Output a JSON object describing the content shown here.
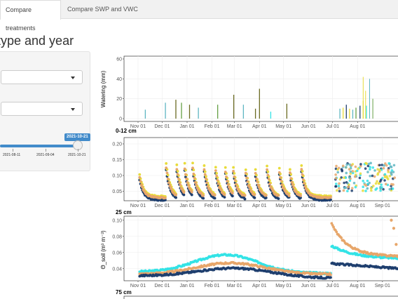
{
  "tabs": [
    {
      "label": "Compare treatments",
      "active": true
    },
    {
      "label": "Compare SWP and VWC",
      "active": false
    }
  ],
  "page_title": "type and year",
  "sidebar": {
    "slider": {
      "value_label": "2021-10-21",
      "ticks": [
        "2021-08-11",
        "2021-09-04",
        "2021-10-21"
      ]
    }
  },
  "colors": {
    "navy": "#1f3f6e",
    "tan": "#e7a66a",
    "cyan": "#33e3e6",
    "yellow": "#e8dc3a",
    "green": "#66a046",
    "olive": "#6b6b22",
    "teal": "#5fb6c2"
  },
  "chart_data": [
    {
      "type": "bar",
      "ylabel": "Watering (mm)",
      "ylim": [
        0,
        60
      ],
      "yticks": [
        "0",
        "20",
        "40",
        "60"
      ],
      "xticks": [
        "Nov 01",
        "Dec 01",
        "Jan 01",
        "Feb 01",
        "Mar 01",
        "Apr 01",
        "May 01",
        "Jun 01",
        "Jul 01",
        "Aug 01"
      ],
      "bars": [
        {
          "date": "Nov 10",
          "value": 9
        },
        {
          "date": "Dec 05",
          "value": 16
        },
        {
          "date": "Dec 18",
          "value": 19
        },
        {
          "date": "Dec 25",
          "value": 16
        },
        {
          "date": "Jan 04",
          "value": 14
        },
        {
          "date": "Jan 15",
          "value": 11
        },
        {
          "date": "Feb 08",
          "value": 14
        },
        {
          "date": "Feb 28",
          "value": 24
        },
        {
          "date": "Mar 12",
          "value": 14
        },
        {
          "date": "Mar 27",
          "value": 10
        },
        {
          "date": "Apr 01",
          "value": 30
        },
        {
          "date": "Apr 15",
          "value": 7
        },
        {
          "date": "May 05",
          "value": 15
        },
        {
          "date": "Jul 10",
          "value": 10
        },
        {
          "date": "Jul 14",
          "value": 11
        },
        {
          "date": "Jul 18",
          "value": 14
        },
        {
          "date": "Jul 22",
          "value": 10
        },
        {
          "date": "Jul 26",
          "value": 9
        },
        {
          "date": "Jul 30",
          "value": 11
        },
        {
          "date": "Aug 04",
          "value": 13
        },
        {
          "date": "Aug 08",
          "value": 18
        },
        {
          "date": "Aug 12",
          "value": 13
        }
      ]
    },
    {
      "type": "scatter",
      "title": "0-12 cm",
      "ylim": [
        0.02,
        0.22
      ],
      "yticks": [
        "0.05",
        "0.10",
        "0.15",
        "0.20"
      ],
      "xticks": [
        "Nov 01",
        "Dec 01",
        "Jan 01",
        "Feb 01",
        "Mar 01",
        "Apr 01",
        "May 01",
        "Jun 01",
        "Jul 01",
        "Aug 01",
        "Sep 01"
      ]
    },
    {
      "type": "scatter",
      "title": "25 cm",
      "ylabel": "Θ_soil (m³ m⁻³)",
      "ylim": [
        0.025,
        0.105
      ],
      "yticks": [
        "0.04",
        "0.06",
        "0.08",
        "0.10"
      ],
      "xticks": [
        "Nov 01",
        "Dec 01",
        "Jan 01",
        "Feb 01",
        "Mar 01",
        "Apr 01",
        "May 01",
        "Jun 01",
        "Jul 01",
        "Aug 01",
        "Sep 01"
      ]
    },
    {
      "type": "scatter",
      "title": "75 cm"
    }
  ]
}
